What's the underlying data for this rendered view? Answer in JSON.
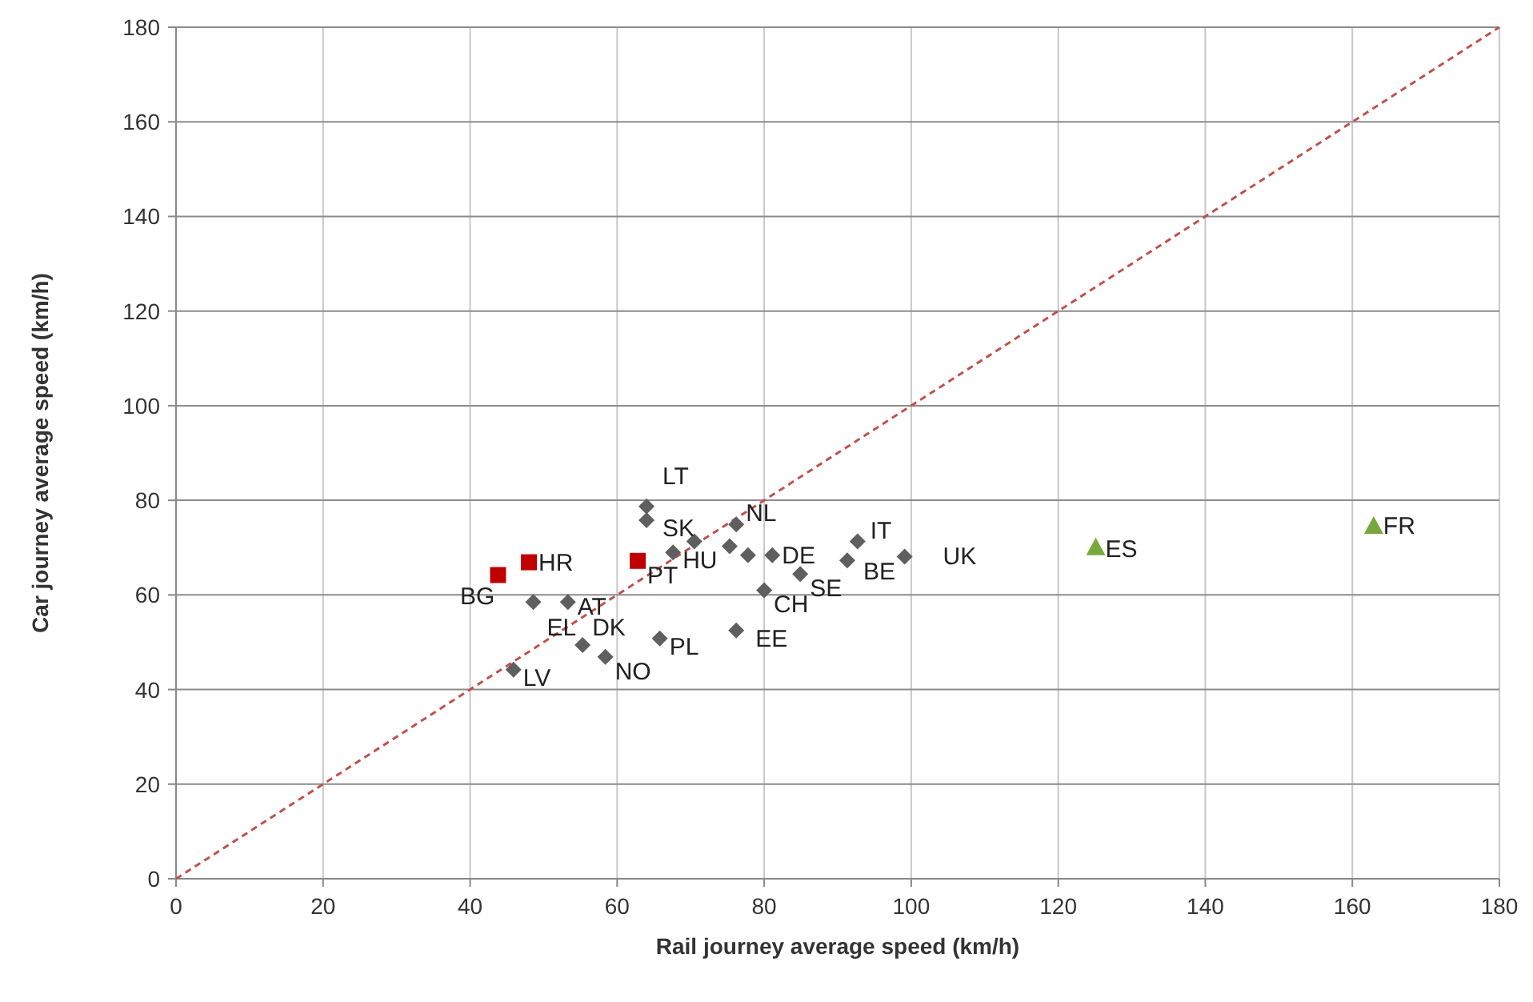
{
  "chart_data": {
    "type": "scatter",
    "xlabel": "Rail journey average speed (km/h)",
    "ylabel": "Car journey average speed (km/h)",
    "xlim": [
      0,
      180
    ],
    "ylim": [
      0,
      180
    ],
    "xticks": [
      0,
      20,
      40,
      60,
      80,
      100,
      120,
      140,
      160,
      180
    ],
    "yticks": [
      0,
      20,
      40,
      60,
      80,
      100,
      120,
      140,
      160,
      180
    ],
    "grid": true,
    "series": [
      {
        "type": "line",
        "color": "#c0504d",
        "line_style": "dashed",
        "marker": "none",
        "x": [
          0,
          180
        ],
        "values": [
          0,
          180
        ]
      },
      {
        "type": "scatter",
        "color": "#5f5f5f",
        "marker": "diamond",
        "x": [
          48.6,
          53.3,
          55.3,
          58.4,
          45.9,
          65.8,
          64.0,
          64.0,
          67.6,
          70.5,
          75.3,
          76.2,
          77.8,
          81.1,
          80.0,
          76.2,
          84.9,
          91.3,
          92.7,
          99.1
        ],
        "values": [
          58.5,
          58.5,
          49.4,
          46.9,
          44.2,
          50.8,
          78.7,
          75.8,
          69.0,
          71.3,
          70.3,
          74.9,
          68.4,
          68.4,
          61.0,
          52.5,
          64.4,
          67.3,
          71.3,
          68.1
        ]
      },
      {
        "type": "scatter",
        "color": "#c00000",
        "marker": "square",
        "x": [
          43.8,
          48.0,
          62.8
        ],
        "values": [
          64.2,
          66.9,
          67.2
        ]
      },
      {
        "type": "scatter",
        "color": "#77a83b",
        "marker": "triangle",
        "x": [
          125.1,
          162.9
        ],
        "values": [
          70.1,
          74.6
        ]
      }
    ],
    "annotations": [
      {
        "text": "BG",
        "x": 43.8,
        "y": 64.2
      },
      {
        "text": "HR",
        "x": 48.0,
        "y": 66.9
      },
      {
        "text": "PT",
        "x": 62.8,
        "y": 67.2
      },
      {
        "text": "AT",
        "x": 53.3,
        "y": 58.5
      },
      {
        "text": "EL",
        "x": 55.3,
        "y": 49.4
      },
      {
        "text": "DK",
        "x": 55.3,
        "y": 49.4
      },
      {
        "text": "NO",
        "x": 58.4,
        "y": 46.9
      },
      {
        "text": "LV",
        "x": 45.9,
        "y": 44.2
      },
      {
        "text": "PL",
        "x": 65.8,
        "y": 50.8
      },
      {
        "text": "LT",
        "x": 64.0,
        "y": 78.7
      },
      {
        "text": "SK",
        "x": 64.0,
        "y": 75.8
      },
      {
        "text": "HU",
        "x": 67.6,
        "y": 69.0
      },
      {
        "text": "NL",
        "x": 76.2,
        "y": 74.9
      },
      {
        "text": "DE",
        "x": 81.1,
        "y": 68.4
      },
      {
        "text": "CH",
        "x": 80.0,
        "y": 61.0
      },
      {
        "text": "EE",
        "x": 76.2,
        "y": 52.5
      },
      {
        "text": "SE",
        "x": 84.9,
        "y": 64.4
      },
      {
        "text": "BE",
        "x": 91.3,
        "y": 67.3
      },
      {
        "text": "IT",
        "x": 92.7,
        "y": 71.3
      },
      {
        "text": "UK",
        "x": 99.1,
        "y": 68.1
      },
      {
        "text": "ES",
        "x": 125.1,
        "y": 70.1
      },
      {
        "text": "FR",
        "x": 162.9,
        "y": 74.6
      }
    ]
  }
}
